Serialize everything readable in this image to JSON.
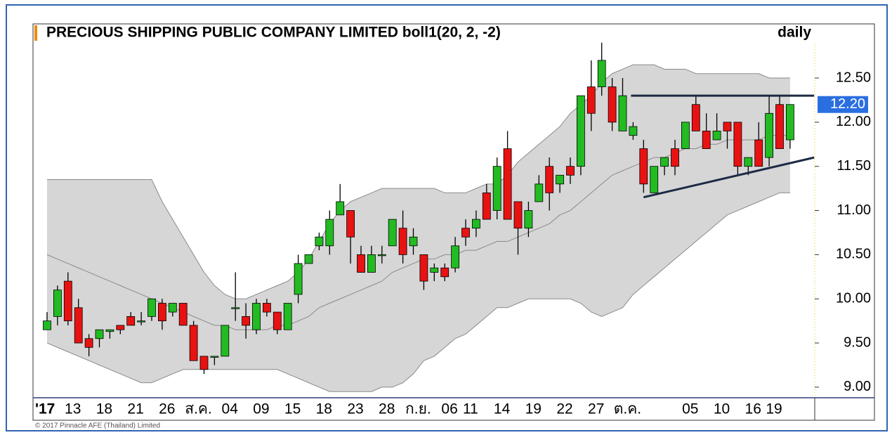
{
  "chart_data": {
    "type": "candlestick",
    "title": "PRECIOUS SHIPPING PUBLIC COMPANY LIMITED boll1(20, 2, -2)",
    "period": "daily",
    "footer": "© 2017 Pinnacle AFE (Thailand) Limited",
    "categories": [
      "'17",
      null,
      null,
      "13",
      null,
      null,
      "18",
      null,
      null,
      "21",
      null,
      null,
      "26",
      null,
      null,
      "ส.ค.",
      null,
      null,
      "04",
      null,
      null,
      "09",
      null,
      null,
      "15",
      null,
      null,
      "18",
      null,
      null,
      "23",
      null,
      null,
      "28",
      null,
      null,
      "ก.ย.",
      null,
      null,
      "06",
      null,
      "11",
      null,
      null,
      "14",
      null,
      null,
      "19",
      null,
      null,
      "22",
      null,
      null,
      "27",
      null,
      null,
      "ต.ค.",
      null,
      null,
      null,
      null,
      null,
      "05",
      null,
      null,
      "10",
      null,
      null,
      "16",
      null,
      "19",
      null
    ],
    "open": [
      9.65,
      9.8,
      10.2,
      9.9,
      9.55,
      9.55,
      9.63,
      9.7,
      9.8,
      9.75,
      9.8,
      9.95,
      9.85,
      9.95,
      9.7,
      9.35,
      9.35,
      9.35,
      9.9,
      9.8,
      9.65,
      9.95,
      9.85,
      9.65,
      10.05,
      10.4,
      10.6,
      10.6,
      10.95,
      11.0,
      10.5,
      10.3,
      10.5,
      10.6,
      10.8,
      10.6,
      10.5,
      10.3,
      10.35,
      10.35,
      10.8,
      10.8,
      11.2,
      11.0,
      11.7,
      11.1,
      10.8,
      11.1,
      11.5,
      11.3,
      11.5,
      11.5,
      12.4,
      12.4,
      12.4,
      11.9,
      11.85,
      11.7,
      11.2,
      11.5,
      11.7,
      11.7,
      12.2,
      11.9,
      11.8,
      12.0,
      12.0,
      11.5,
      11.8,
      11.6,
      12.2,
      11.8
    ],
    "high": [
      9.85,
      10.15,
      10.3,
      10.0,
      9.6,
      9.65,
      9.65,
      9.7,
      9.85,
      9.85,
      10.0,
      10.0,
      9.95,
      9.95,
      9.75,
      9.35,
      9.35,
      9.7,
      10.3,
      9.95,
      10.0,
      10.0,
      9.85,
      9.95,
      10.5,
      10.5,
      10.75,
      11.0,
      11.3,
      11.0,
      10.6,
      10.6,
      10.6,
      10.9,
      11.0,
      10.8,
      10.5,
      10.4,
      10.4,
      10.7,
      10.9,
      11.0,
      11.3,
      11.6,
      11.9,
      11.1,
      11.1,
      11.4,
      11.6,
      11.4,
      11.6,
      12.3,
      12.7,
      12.9,
      12.5,
      12.5,
      12.0,
      11.8,
      11.5,
      11.6,
      11.8,
      12.0,
      12.3,
      12.1,
      12.1,
      12.0,
      12.0,
      11.6,
      12.0,
      12.3,
      12.3,
      12.2
    ],
    "low": [
      9.65,
      9.7,
      9.7,
      9.5,
      9.35,
      9.45,
      9.55,
      9.6,
      9.7,
      9.7,
      9.75,
      9.65,
      9.8,
      9.7,
      9.3,
      9.15,
      9.25,
      9.35,
      9.75,
      9.55,
      9.6,
      9.8,
      9.6,
      9.65,
      9.95,
      10.4,
      10.55,
      10.5,
      10.95,
      10.4,
      10.3,
      10.3,
      10.4,
      10.6,
      10.4,
      10.5,
      10.1,
      10.2,
      10.2,
      10.3,
      10.6,
      10.7,
      10.9,
      10.9,
      10.9,
      10.5,
      10.7,
      11.1,
      11.0,
      11.2,
      11.3,
      11.4,
      11.9,
      12.3,
      11.9,
      11.9,
      11.8,
      11.2,
      11.2,
      11.4,
      11.4,
      11.7,
      11.9,
      11.7,
      11.8,
      11.7,
      11.4,
      11.4,
      11.5,
      11.5,
      11.7,
      11.7
    ],
    "close": [
      9.75,
      10.1,
      9.75,
      9.5,
      9.45,
      9.65,
      9.65,
      9.65,
      9.7,
      9.75,
      10.0,
      9.75,
      9.95,
      9.7,
      9.3,
      9.2,
      9.35,
      9.7,
      9.9,
      9.7,
      9.95,
      9.85,
      9.65,
      9.95,
      10.4,
      10.5,
      10.7,
      10.9,
      11.1,
      10.7,
      10.3,
      10.5,
      10.5,
      10.9,
      10.5,
      10.7,
      10.2,
      10.35,
      10.25,
      10.6,
      10.7,
      10.9,
      10.9,
      11.5,
      10.9,
      10.8,
      11.0,
      11.3,
      11.2,
      11.4,
      11.4,
      12.3,
      12.1,
      12.7,
      12.0,
      12.3,
      11.95,
      11.3,
      11.5,
      11.6,
      11.5,
      12.0,
      11.9,
      11.7,
      11.9,
      11.9,
      11.5,
      11.6,
      11.5,
      12.1,
      11.7,
      12.2
    ],
    "up_color": "#22bb22",
    "down_color": "#e81212",
    "bands": {
      "upper": [
        11.35,
        11.35,
        11.35,
        11.35,
        11.35,
        11.35,
        11.35,
        11.35,
        11.35,
        11.35,
        11.35,
        11.1,
        10.9,
        10.7,
        10.5,
        10.3,
        10.15,
        10.05,
        10.0,
        10.0,
        10.05,
        10.1,
        10.15,
        10.2,
        10.3,
        10.45,
        10.65,
        10.85,
        11.0,
        11.1,
        11.15,
        11.2,
        11.25,
        11.25,
        11.25,
        11.25,
        11.25,
        11.25,
        11.2,
        11.2,
        11.2,
        11.25,
        11.3,
        11.3,
        11.4,
        11.55,
        11.65,
        11.75,
        11.85,
        11.95,
        12.1,
        12.2,
        12.3,
        12.45,
        12.55,
        12.6,
        12.65,
        12.65,
        12.65,
        12.6,
        12.6,
        12.6,
        12.55,
        12.55,
        12.55,
        12.55,
        12.55,
        12.55,
        12.55,
        12.5,
        12.5,
        12.5
      ],
      "middle": [
        10.5,
        10.45,
        10.4,
        10.35,
        10.3,
        10.25,
        10.2,
        10.15,
        10.1,
        10.05,
        10.0,
        9.95,
        9.9,
        9.85,
        9.8,
        9.75,
        9.7,
        9.7,
        9.65,
        9.65,
        9.65,
        9.65,
        9.7,
        9.7,
        9.75,
        9.8,
        9.9,
        9.95,
        10.0,
        10.05,
        10.1,
        10.15,
        10.2,
        10.3,
        10.35,
        10.4,
        10.45,
        10.45,
        10.5,
        10.5,
        10.55,
        10.55,
        10.6,
        10.65,
        10.65,
        10.7,
        10.75,
        10.8,
        10.85,
        10.95,
        11.0,
        11.1,
        11.2,
        11.3,
        11.4,
        11.45,
        11.5,
        11.55,
        11.6,
        11.6,
        11.65,
        11.7,
        11.7,
        11.75,
        11.75,
        11.8,
        11.8,
        11.8,
        11.8,
        11.85,
        11.85,
        11.85
      ],
      "lower": [
        9.5,
        9.45,
        9.4,
        9.35,
        9.3,
        9.25,
        9.2,
        9.15,
        9.1,
        9.05,
        9.05,
        9.1,
        9.15,
        9.2,
        9.2,
        9.2,
        9.2,
        9.2,
        9.2,
        9.2,
        9.2,
        9.2,
        9.2,
        9.15,
        9.1,
        9.05,
        9.0,
        8.95,
        8.95,
        8.95,
        8.95,
        8.95,
        9.0,
        9.0,
        9.05,
        9.15,
        9.3,
        9.35,
        9.45,
        9.55,
        9.6,
        9.7,
        9.8,
        9.9,
        9.9,
        9.95,
        10.0,
        10.0,
        10.0,
        10.0,
        10.0,
        9.95,
        9.85,
        9.8,
        9.85,
        9.9,
        10.05,
        10.15,
        10.25,
        10.35,
        10.45,
        10.55,
        10.65,
        10.75,
        10.85,
        10.95,
        11.0,
        11.05,
        11.1,
        11.15,
        11.2,
        11.2
      ],
      "fill": "#d6d6d6",
      "line_color": "#8a8a8a"
    },
    "trendlines": [
      {
        "start": [
          55.8,
          12.3
        ],
        "end": [
          73.3,
          12.3
        ],
        "color": "#1c2a44"
      },
      {
        "start": [
          57,
          11.15
        ],
        "end": [
          73.3,
          11.6
        ],
        "color": "#1c2a44"
      }
    ],
    "last_price": {
      "value": 12.2,
      "label": "12.20"
    },
    "ylim": [
      8.88,
      12.89
    ],
    "yticks": [
      {
        "value": 9,
        "label": "9.00"
      },
      {
        "value": 9.5,
        "label": "9.50"
      },
      {
        "value": 10,
        "label": "10.00"
      },
      {
        "value": 10.5,
        "label": "10.50"
      },
      {
        "value": 11,
        "label": "11.00"
      },
      {
        "value": 11.5,
        "label": "11.50"
      },
      {
        "value": 12,
        "label": "12.00"
      },
      {
        "value": 12.5,
        "label": "12.50"
      }
    ]
  }
}
